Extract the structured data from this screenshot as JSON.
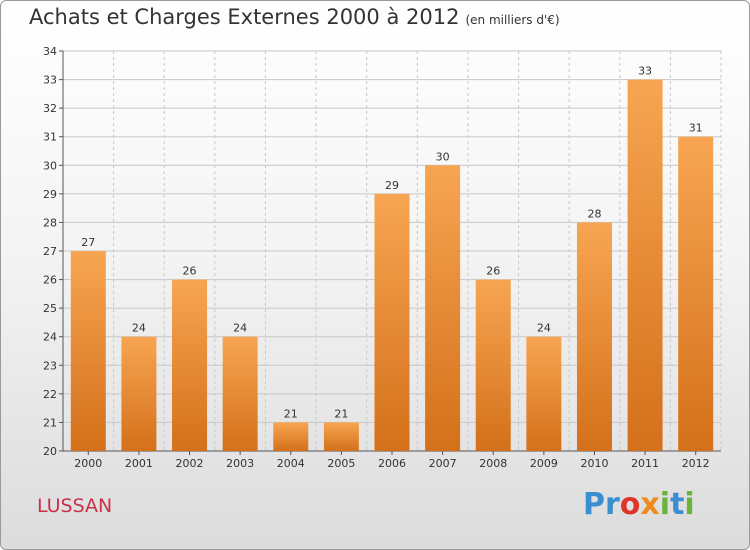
{
  "title": "Achats et Charges Externes 2000 à 2012",
  "subtitle": "(en milliers d'€)",
  "commune": "LUSSAN",
  "logo": {
    "text": "Proxiti",
    "letters": [
      {
        "ch": "P",
        "color": "#3a8fd0"
      },
      {
        "ch": "r",
        "color": "#3a8fd0"
      },
      {
        "ch": "o",
        "color": "#e0342a"
      },
      {
        "ch": "x",
        "color": "#f08a1c"
      },
      {
        "ch": "i",
        "color": "#6bb33a"
      },
      {
        "ch": "t",
        "color": "#3a8fd0"
      },
      {
        "ch": "i",
        "color": "#6bb33a"
      }
    ]
  },
  "colors": {
    "bar_top": "#f7a552",
    "bar_bottom": "#d4701a",
    "grid": "#c8c8c8",
    "axis": "#555555",
    "title": "#333333",
    "commune": "#c9314a"
  },
  "chart_data": {
    "type": "bar",
    "title": "Achats et Charges Externes 2000 à 2012",
    "subtitle": "(en milliers d'€)",
    "xlabel": "",
    "ylabel": "",
    "categories": [
      "2000",
      "2001",
      "2002",
      "2003",
      "2004",
      "2005",
      "2006",
      "2007",
      "2008",
      "2009",
      "2010",
      "2011",
      "2012"
    ],
    "values": [
      27,
      24,
      26,
      24,
      21,
      21,
      29,
      30,
      26,
      24,
      28,
      33,
      31
    ],
    "ylim": [
      20,
      34
    ],
    "yticks": [
      20,
      21,
      22,
      23,
      24,
      25,
      26,
      27,
      28,
      29,
      30,
      31,
      32,
      33,
      34
    ],
    "grid": true,
    "data_labels": true,
    "legend": "none"
  }
}
